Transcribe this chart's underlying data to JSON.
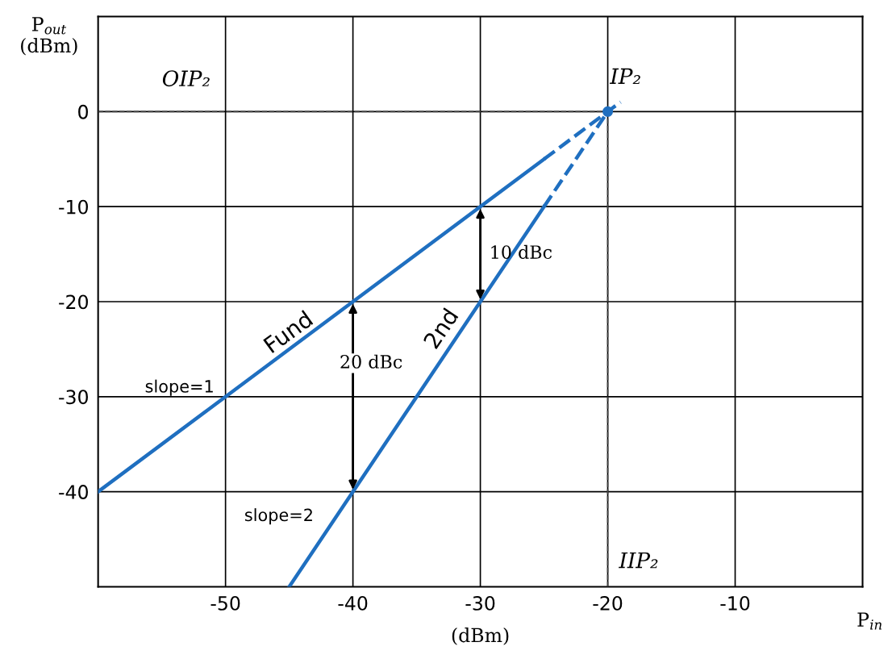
{
  "chart_data": {
    "type": "line",
    "series": [
      {
        "color": "#1f6fc0",
        "x": [
          -60,
          -25
        ],
        "values": [
          -40,
          -5
        ],
        "line_style": "solid"
      },
      {
        "color": "#1f6fc0",
        "x": [
          -25,
          -19
        ],
        "values": [
          -5,
          1
        ],
        "line_style": "dashed"
      },
      {
        "color": "#1f6fc0",
        "x": [
          -45,
          -25
        ],
        "values": [
          -50,
          -10
        ],
        "line_style": "solid"
      },
      {
        "color": "#1f6fc0",
        "x": [
          -25,
          -20
        ],
        "values": [
          -10,
          0
        ],
        "line_style": "dashed"
      },
      {
        "color": "#444444",
        "x": [
          -60,
          -20
        ],
        "values": [
          0,
          0
        ],
        "line_style": "dashed"
      },
      {
        "color": "#444444",
        "x": [
          -20,
          -20
        ],
        "values": [
          -50,
          0
        ],
        "line_style": "dashed"
      },
      {
        "type": "scatter",
        "color": "#1f6fc0",
        "x": [
          -20
        ],
        "values": [
          0
        ],
        "marker": "circle"
      }
    ],
    "xlabel": "(dBm)",
    "ylabel": "P$_{out}$\n(dBm)",
    "annotations": [
      "P$_{in}$",
      {
        "text": "OIP₂",
        "x": -55,
        "y": 0
      },
      {
        "text": "IP₂",
        "x": -20,
        "y": 0
      },
      {
        "text": "IIP₂",
        "x": -20,
        "y": -50
      },
      {
        "text": "Fund",
        "x": -45,
        "y": -25
      },
      {
        "text": "2nd",
        "x": -35,
        "y": -30
      },
      {
        "text": "slope=1",
        "x": -50,
        "y": -30
      },
      {
        "text": "slope=2",
        "x": -40,
        "y": -40
      },
      {
        "text": "10 dBc",
        "x": -30,
        "y": -10
      },
      {
        "text": "20 dBc",
        "x": -40,
        "y": -20
      }
    ],
    "xlim": [
      -60,
      0
    ],
    "ylim": [
      -50,
      10
    ],
    "xticks": [
      -50,
      -40,
      -30,
      -20,
      -10
    ],
    "yticks": [
      -40,
      -30,
      -20,
      -10,
      0
    ],
    "grid": true,
    "legend": false
  }
}
